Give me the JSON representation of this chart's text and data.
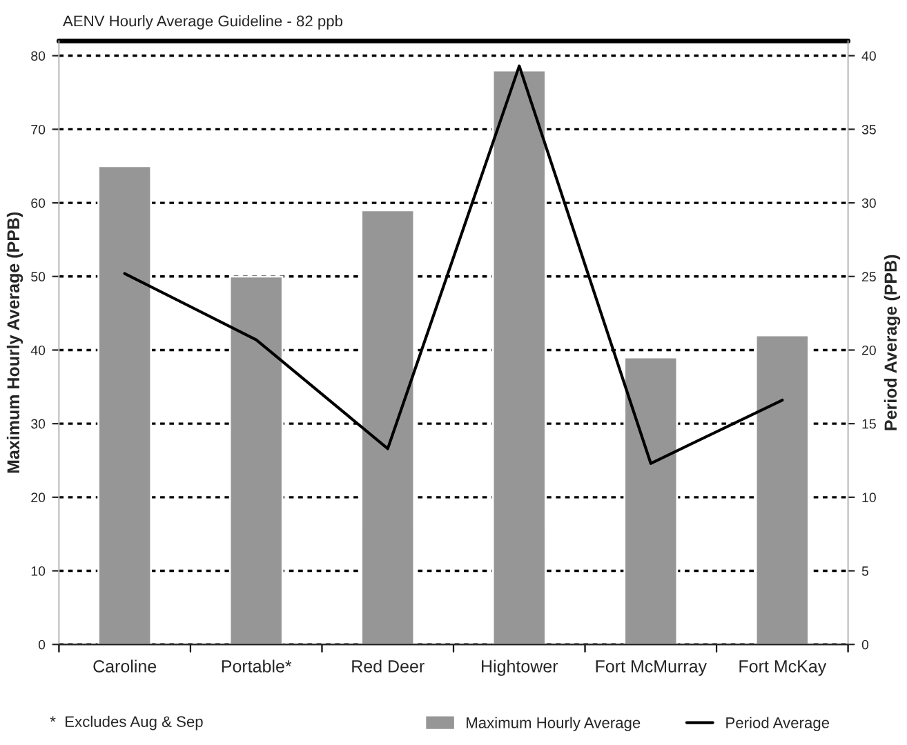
{
  "chart_data": {
    "type": "bar",
    "categories": [
      "Caroline",
      "Portable*",
      "Red Deer",
      "Hightower",
      "Fort McMurray",
      "Fort McKay"
    ],
    "series": [
      {
        "name": "Maximum Hourly Average",
        "color": "#969696",
        "values": [
          65,
          50,
          59,
          78,
          39,
          42
        ]
      },
      {
        "name": "Period Average",
        "type": "line",
        "axis": "y2",
        "color": "#000000",
        "values": [
          25.2,
          20.7,
          13.3,
          39.3,
          12.3,
          16.6
        ]
      }
    ],
    "ylabel": "Maximum Hourly Average (PPB)",
    "y2label": "Period Average (PPB)",
    "ylim": [
      0,
      82
    ],
    "yticks": [
      0,
      10,
      20,
      30,
      40,
      50,
      60,
      70,
      80
    ],
    "y2lim": [
      0,
      41
    ],
    "y2ticks": [
      0,
      5,
      10,
      15,
      20,
      25,
      30,
      35,
      40
    ],
    "ref_lines": [
      {
        "axis": "y",
        "value": 82,
        "label": "AENV Hourly Average Guideline - 82 ppb",
        "color": "#000000",
        "line_style": "solid"
      }
    ],
    "grid": "y",
    "legend": "bottom",
    "marker": "none",
    "line_style": "solid",
    "annotations": [
      "*  Excludes Aug & Sep"
    ]
  }
}
